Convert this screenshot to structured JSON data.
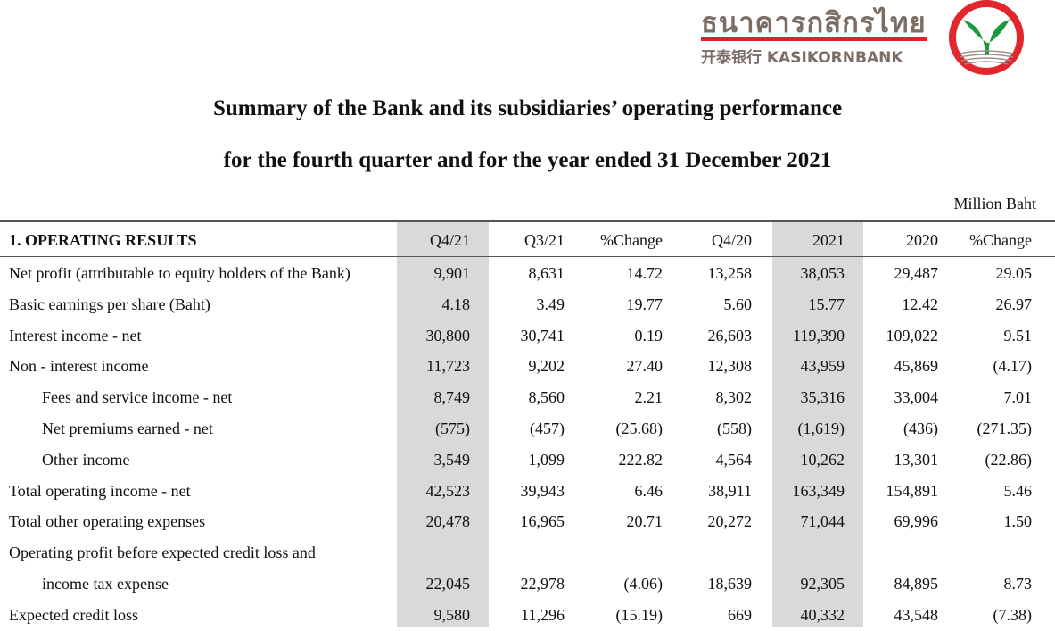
{
  "logo": {
    "thai": "ธนาคารกสิกรไทย",
    "english": "开泰银行 KASIKORNBANK",
    "ring_color": "#e3262d",
    "leaf_color": "#1a9a3a"
  },
  "title_line1": "Summary of the Bank and its subsidiaries’ operating performance",
  "title_line2": "for the fourth quarter and for the year ended 31 December 2021",
  "unit": "Million Baht",
  "table": {
    "section": "1. OPERATING RESULTS",
    "columns": [
      "Q4/21",
      "Q3/21",
      "%Change",
      "Q4/20",
      "2021",
      "2020",
      "%Change"
    ],
    "rows": [
      {
        "label": "Net profit (attributable to equity holders of the Bank)",
        "indent": false,
        "values": [
          "9,901",
          "8,631",
          "14.72",
          "13,258",
          "38,053",
          "29,487",
          "29.05"
        ]
      },
      {
        "label": "Basic earnings per share (Baht)",
        "indent": false,
        "values": [
          "4.18",
          "3.49",
          "19.77",
          "5.60",
          "15.77",
          "12.42",
          "26.97"
        ]
      },
      {
        "label": "Interest income - net",
        "indent": false,
        "values": [
          "30,800",
          "30,741",
          "0.19",
          "26,603",
          "119,390",
          "109,022",
          "9.51"
        ]
      },
      {
        "label": "Non - interest income",
        "indent": false,
        "values": [
          "11,723",
          "9,202",
          "27.40",
          "12,308",
          "43,959",
          "45,869",
          "(4.17)"
        ]
      },
      {
        "label": "Fees and service income - net",
        "indent": true,
        "values": [
          "8,749",
          "8,560",
          "2.21",
          "8,302",
          "35,316",
          "33,004",
          "7.01"
        ]
      },
      {
        "label": "Net premiums earned - net",
        "indent": true,
        "values": [
          "(575)",
          "(457)",
          "(25.68)",
          "(558)",
          "(1,619)",
          "(436)",
          "(271.35)"
        ]
      },
      {
        "label": "Other income",
        "indent": true,
        "values": [
          "3,549",
          "1,099",
          "222.82",
          "4,564",
          "10,262",
          "13,301",
          "(22.86)"
        ]
      },
      {
        "label": "Total operating income - net",
        "indent": false,
        "values": [
          "42,523",
          "39,943",
          "6.46",
          "38,911",
          "163,349",
          "154,891",
          "5.46"
        ]
      },
      {
        "label": "Total other operating expenses",
        "indent": false,
        "values": [
          "20,478",
          "16,965",
          "20.71",
          "20,272",
          "71,044",
          "69,996",
          "1.50"
        ]
      },
      {
        "label": "Operating profit before expected credit loss and",
        "indent": false,
        "values": [
          "",
          "",
          "",
          "",
          "",
          "",
          ""
        ]
      },
      {
        "label": "income tax expense",
        "indent": true,
        "values": [
          "22,045",
          "22,978",
          "(4.06)",
          "18,639",
          "92,305",
          "84,895",
          "8.73"
        ]
      },
      {
        "label": "Expected credit loss",
        "indent": false,
        "values": [
          "9,580",
          "11,296",
          "(15.19)",
          "669",
          "40,332",
          "43,548",
          "(7.38)"
        ]
      }
    ]
  }
}
